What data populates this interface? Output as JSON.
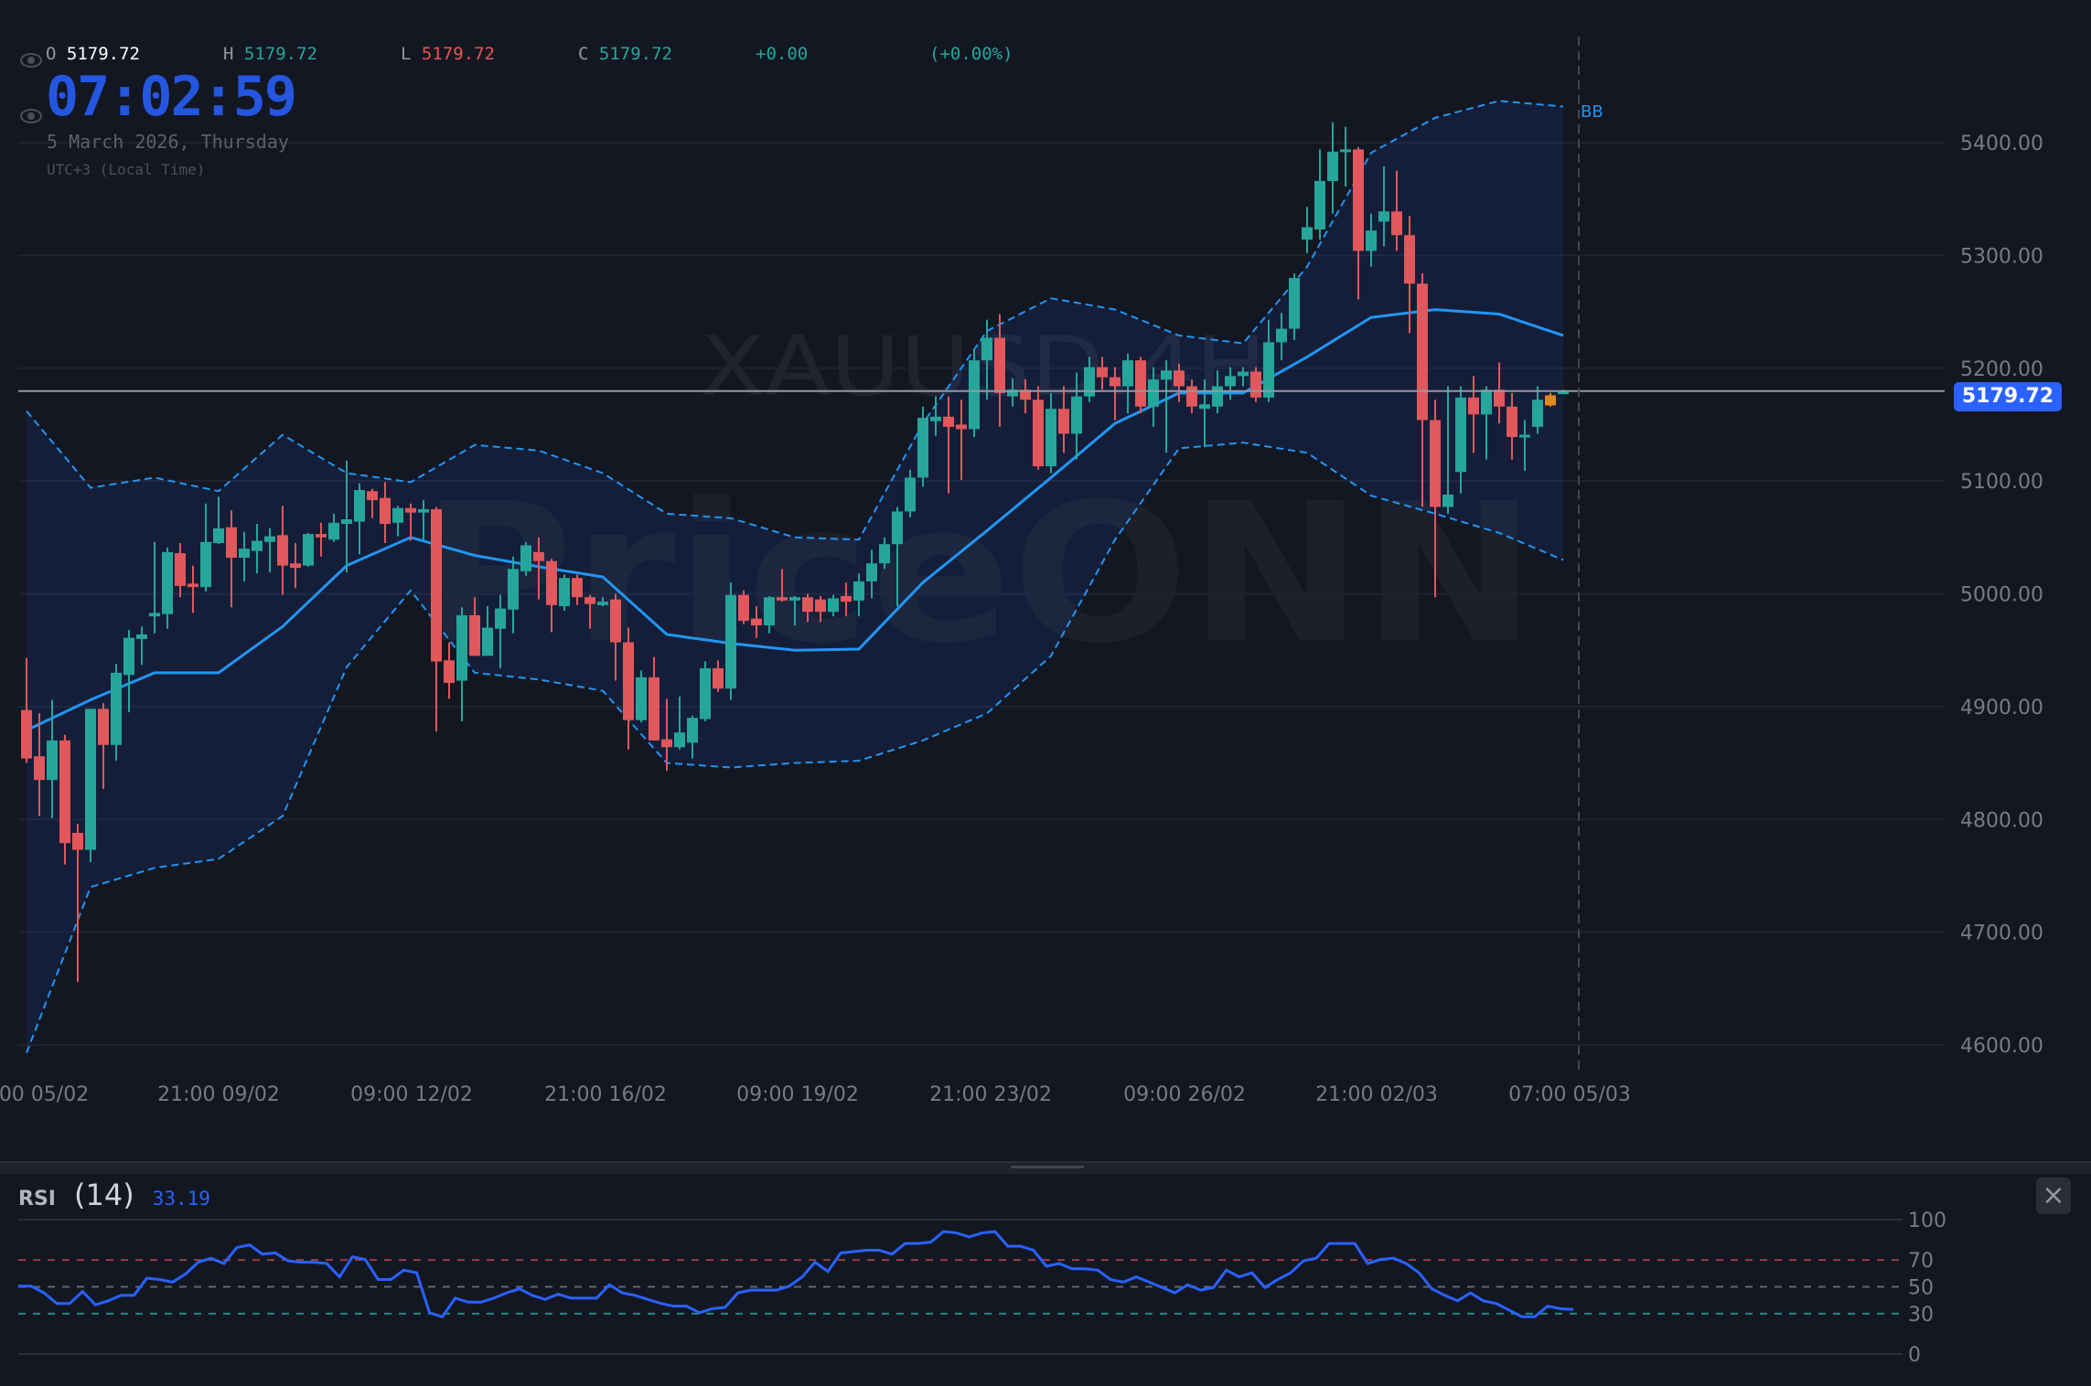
{
  "legend": {
    "o_label": "O",
    "o": "5179.72",
    "h_label": "H",
    "h": "5179.72",
    "l_label": "L",
    "l": "5179.72",
    "c_label": "C",
    "c": "5179.72",
    "change": "+0.00",
    "change_pct": "(+0.00%)"
  },
  "clock": {
    "time": "07:02:59",
    "date": "5 March 2026, Thursday",
    "timezone": "UTC+3 (Local Time)"
  },
  "watermark": {
    "symbol": "XAUUSD.4H",
    "brand": "PriceONN"
  },
  "colors": {
    "background": "#131722",
    "up": "#26a69a",
    "down": "#e0585c",
    "bb_line": "#2196f3",
    "current": "#2962ff",
    "highlight": "#e08a1e"
  },
  "rsi_panel": {
    "name": "RSI",
    "length": "(14)",
    "value": "33.19",
    "close_icon": "close-icon"
  },
  "chart_data": [
    {
      "type": "candlestick",
      "indicator_label": "BB",
      "current_price": "5179.72",
      "y_ticks": [
        "5400.00",
        "5300.00",
        "5200.00",
        "5100.00",
        "5000.00",
        "4900.00",
        "4800.00",
        "4700.00",
        "4600.00"
      ],
      "ylim": [
        4600,
        5400
      ],
      "grid": true,
      "x_ticks": [
        "00 05/02",
        "21:00 09/02",
        "09:00 12/02",
        "21:00 16/02",
        "09:00 19/02",
        "21:00 23/02",
        "09:00 26/02",
        "21:00 02/03",
        "07:00 05/03"
      ],
      "highlight_index": 119,
      "ohlc": [
        [
          4897,
          4943,
          4850,
          4854
        ],
        [
          4856,
          4894,
          4803,
          4835
        ],
        [
          4835,
          4906,
          4801,
          4870
        ],
        [
          4870,
          4875,
          4760,
          4779
        ],
        [
          4788,
          4796,
          4656,
          4773
        ],
        [
          4773,
          4898,
          4762,
          4898
        ],
        [
          4898,
          4903,
          4827,
          4866
        ],
        [
          4866,
          4938,
          4852,
          4930
        ],
        [
          4928,
          4968,
          4895,
          4961
        ],
        [
          4960,
          4971,
          4937,
          4964
        ],
        [
          4980,
          5046,
          4965,
          4983
        ],
        [
          4982,
          5041,
          4969,
          5037
        ],
        [
          5036,
          5045,
          4997,
          5007
        ],
        [
          5009,
          5025,
          4983,
          5006
        ],
        [
          5006,
          5080,
          5002,
          5046
        ],
        [
          5045,
          5086,
          5044,
          5058
        ],
        [
          5059,
          5074,
          4988,
          5032
        ],
        [
          5032,
          5055,
          5011,
          5040
        ],
        [
          5038,
          5062,
          5018,
          5047
        ],
        [
          5046,
          5058,
          5019,
          5051
        ],
        [
          5052,
          5078,
          4999,
          5025
        ],
        [
          5027,
          5045,
          5005,
          5023
        ],
        [
          5025,
          5054,
          5024,
          5053
        ],
        [
          5053,
          5063,
          5033,
          5050
        ],
        [
          5048,
          5071,
          5046,
          5063
        ],
        [
          5062,
          5118,
          5019,
          5066
        ],
        [
          5064,
          5098,
          5035,
          5092
        ],
        [
          5091,
          5093,
          5067,
          5083
        ],
        [
          5085,
          5099,
          5045,
          5062
        ],
        [
          5063,
          5078,
          5051,
          5076
        ],
        [
          5076,
          5080,
          5047,
          5072
        ],
        [
          5072,
          5083,
          5048,
          5075
        ],
        [
          5075,
          5077,
          4878,
          4940
        ],
        [
          4941,
          4957,
          4907,
          4921
        ],
        [
          4923,
          4988,
          4887,
          4981
        ],
        [
          4981,
          4997,
          4945,
          4945
        ],
        [
          4945,
          4989,
          4945,
          4970
        ],
        [
          4969,
          4999,
          4934,
          4987
        ],
        [
          4986,
          5033,
          4965,
          5022
        ],
        [
          5020,
          5046,
          5016,
          5043
        ],
        [
          5037,
          5050,
          4995,
          5029
        ],
        [
          5029,
          5031,
          4966,
          4990
        ],
        [
          4989,
          5017,
          4985,
          5014
        ],
        [
          5014,
          5017,
          4990,
          4997
        ],
        [
          4997,
          4999,
          4969,
          4991
        ],
        [
          4990,
          4997,
          4989,
          4993
        ],
        [
          4995,
          5000,
          4923,
          4957
        ],
        [
          4957,
          4970,
          4862,
          4888
        ],
        [
          4888,
          4932,
          4886,
          4926
        ],
        [
          4926,
          4944,
          4870,
          4870
        ],
        [
          4871,
          4907,
          4843,
          4864
        ],
        [
          4864,
          4909,
          4862,
          4877
        ],
        [
          4868,
          4892,
          4854,
          4890
        ],
        [
          4889,
          4940,
          4887,
          4934
        ],
        [
          4934,
          4941,
          4913,
          4916
        ],
        [
          4916,
          5010,
          4906,
          4999
        ],
        [
          4999,
          5003,
          4973,
          4976
        ],
        [
          4978,
          4989,
          4961,
          4972
        ],
        [
          4972,
          4998,
          4965,
          4997
        ],
        [
          4997,
          5022,
          4993,
          4994
        ],
        [
          4994,
          4998,
          4972,
          4997
        ],
        [
          4997,
          5000,
          4975,
          4984
        ],
        [
          4995,
          4998,
          4975,
          4984
        ],
        [
          4984,
          4999,
          4980,
          4996
        ],
        [
          4998,
          5010,
          4980,
          4993
        ],
        [
          4994,
          5018,
          4980,
          5011
        ],
        [
          5011,
          5039,
          4996,
          5027
        ],
        [
          5027,
          5050,
          5022,
          5044
        ],
        [
          5044,
          5077,
          4989,
          5073
        ],
        [
          5073,
          5110,
          5068,
          5103
        ],
        [
          5103,
          5166,
          5095,
          5156
        ],
        [
          5153,
          5175,
          5140,
          5157
        ],
        [
          5157,
          5175,
          5089,
          5148
        ],
        [
          5150,
          5172,
          5101,
          5146
        ],
        [
          5146,
          5217,
          5139,
          5207
        ],
        [
          5207,
          5243,
          5172,
          5227
        ],
        [
          5227,
          5248,
          5148,
          5178
        ],
        [
          5175,
          5191,
          5166,
          5181
        ],
        [
          5181,
          5190,
          5160,
          5172
        ],
        [
          5172,
          5184,
          5110,
          5113
        ],
        [
          5113,
          5178,
          5107,
          5164
        ],
        [
          5164,
          5184,
          5125,
          5142
        ],
        [
          5142,
          5196,
          5119,
          5175
        ],
        [
          5175,
          5210,
          5170,
          5201
        ],
        [
          5201,
          5210,
          5181,
          5192
        ],
        [
          5192,
          5201,
          5154,
          5184
        ],
        [
          5184,
          5213,
          5160,
          5207
        ],
        [
          5207,
          5210,
          5160,
          5166
        ],
        [
          5166,
          5201,
          5148,
          5190
        ],
        [
          5190,
          5207,
          5125,
          5198
        ],
        [
          5198,
          5204,
          5170,
          5184
        ],
        [
          5184,
          5190,
          5160,
          5166
        ],
        [
          5164,
          5190,
          5130,
          5168
        ],
        [
          5166,
          5198,
          5160,
          5184
        ],
        [
          5184,
          5201,
          5172,
          5193
        ],
        [
          5193,
          5201,
          5184,
          5197
        ],
        [
          5197,
          5201,
          5170,
          5174
        ],
        [
          5174,
          5243,
          5170,
          5223
        ],
        [
          5223,
          5249,
          5207,
          5235
        ],
        [
          5235,
          5284,
          5225,
          5280
        ],
        [
          5314,
          5343,
          5302,
          5325
        ],
        [
          5323,
          5394,
          5314,
          5366
        ],
        [
          5366,
          5418,
          5337,
          5392
        ],
        [
          5392,
          5414,
          5361,
          5394
        ],
        [
          5394,
          5396,
          5261,
          5304
        ],
        [
          5304,
          5337,
          5290,
          5322
        ],
        [
          5330,
          5379,
          5308,
          5339
        ],
        [
          5339,
          5375,
          5304,
          5318
        ],
        [
          5318,
          5335,
          5231,
          5275
        ],
        [
          5275,
          5284,
          5077,
          5154
        ],
        [
          5154,
          5172,
          4997,
          5077
        ],
        [
          5077,
          5184,
          5071,
          5088
        ],
        [
          5108,
          5184,
          5089,
          5174
        ],
        [
          5174,
          5193,
          5125,
          5159
        ],
        [
          5159,
          5184,
          5119,
          5181
        ],
        [
          5181,
          5205,
          5151,
          5166
        ],
        [
          5166,
          5178,
          5119,
          5139
        ],
        [
          5139,
          5154,
          5109,
          5141
        ],
        [
          5148,
          5184,
          5142,
          5172
        ],
        [
          5176,
          5178,
          5166,
          5167
        ],
        [
          5177,
          5181,
          5177,
          5180
        ]
      ],
      "bollinger_sample_step": 5,
      "bb_upper": [
        5162,
        5094,
        5103,
        5091,
        5141,
        5107,
        5099,
        5132,
        5127,
        5107,
        5071,
        5067,
        5050,
        5048,
        5151,
        5233,
        5262,
        5252,
        5229,
        5222,
        5290,
        5391,
        5422,
        5437,
        5432
      ],
      "bb_middle": [
        4879,
        4906,
        4930,
        4930,
        4971,
        5025,
        5050,
        5034,
        5024,
        5015,
        4964,
        4956,
        4950,
        4951,
        5010,
        5056,
        5103,
        5151,
        5178,
        5178,
        5210,
        5245,
        5252,
        5248,
        5229
      ],
      "bb_lower": [
        4593,
        4740,
        4757,
        4765,
        4803,
        4935,
        5003,
        4930,
        4924,
        4914,
        4850,
        4846,
        4850,
        4852,
        4870,
        4894,
        4945,
        5048,
        5129,
        5134,
        5125,
        5087,
        5071,
        5054,
        5030
      ]
    },
    {
      "type": "line",
      "name": "RSI",
      "ylim": [
        0,
        100
      ],
      "y_ticks": [
        "100",
        "70",
        "50",
        "30",
        "0"
      ],
      "levels": [
        70,
        50,
        30
      ],
      "values": [
        50.5,
        50.5,
        45.5,
        37.6,
        37.6,
        46.5,
        36.6,
        39.6,
        43.6,
        43.6,
        56.4,
        55.4,
        53.5,
        59.4,
        68.3,
        71.3,
        67.3,
        79.2,
        81.2,
        74.3,
        75.2,
        69.3,
        68.3,
        68.3,
        67.3,
        57.4,
        72.3,
        70.3,
        55.4,
        55.4,
        62.4,
        60.4,
        30.7,
        27.7,
        41.6,
        38.6,
        38.6,
        41.6,
        45.5,
        48.5,
        43.6,
        40.6,
        44.6,
        41.6,
        41.6,
        41.6,
        51.5,
        45.5,
        43.6,
        40.6,
        37.6,
        35.6,
        35.6,
        30.7,
        33.7,
        34.7,
        45.5,
        47.5,
        47.5,
        47.5,
        50.5,
        57.4,
        68.3,
        61.4,
        75.2,
        76.2,
        77.2,
        77.2,
        74.3,
        82.2,
        82.2,
        83.2,
        91.1,
        90.1,
        87.1,
        90.1,
        91.1,
        80.2,
        80.2,
        77.2,
        65.3,
        67.3,
        63.4,
        63.4,
        62.4,
        55.4,
        53.5,
        57.4,
        53.5,
        49.5,
        45.5,
        51.5,
        47.5,
        49.5,
        62.4,
        57.4,
        60.4,
        49.5,
        55.4,
        60.4,
        69.3,
        71.3,
        82.2,
        82.2,
        82.2,
        67.3,
        70.3,
        71.3,
        67.3,
        60.4,
        48.5,
        43.6,
        39.6,
        45.5,
        39.6,
        37.6,
        32.7,
        27.7,
        27.7,
        35.6,
        33.7,
        33.2
      ]
    }
  ]
}
